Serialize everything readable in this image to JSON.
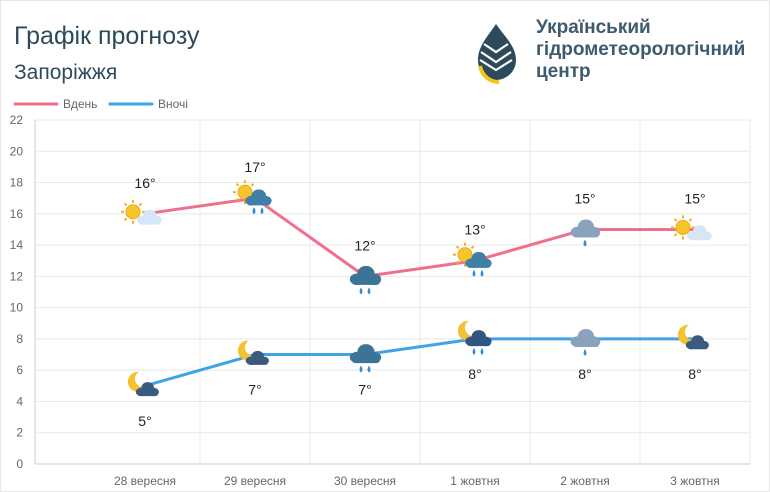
{
  "header": {
    "title": "Графік прогнозу",
    "subtitle": "Запоріжжя",
    "org_lines": [
      "Український",
      "гідрометеорологічний",
      "центр"
    ]
  },
  "chart_data": {
    "type": "line",
    "categories": [
      "28 вересня",
      "29 вересня",
      "30 вересня",
      "1 жовтня",
      "2 жовтня",
      "3 жовтня"
    ],
    "series": [
      {
        "name": "Вдень",
        "color": "#f06f8c",
        "values": [
          16,
          17,
          12,
          13,
          15,
          15
        ],
        "labels": [
          "16°",
          "17°",
          "12°",
          "13°",
          "15°",
          "15°"
        ],
        "icons": [
          "sun-cloud",
          "sun-cloud-rain",
          "cloud-rain",
          "sun-cloud-rain",
          "cloud-rain-light",
          "sun-cloud"
        ]
      },
      {
        "name": "Вночі",
        "color": "#3fa3e6",
        "values": [
          5,
          7,
          7,
          8,
          8,
          8
        ],
        "labels": [
          "5°",
          "7°",
          "7°",
          "8°",
          "8°",
          "8°"
        ],
        "icons": [
          "moon-cloud",
          "moon-cloud",
          "cloud-rain",
          "moon-cloud-rain",
          "cloud-rain-light",
          "moon-cloud"
        ]
      }
    ],
    "ylim": [
      0,
      22
    ],
    "yticks": [
      0,
      2,
      4,
      6,
      8,
      10,
      12,
      14,
      16,
      18,
      20,
      22
    ],
    "grid": true,
    "legend": "top-left"
  }
}
